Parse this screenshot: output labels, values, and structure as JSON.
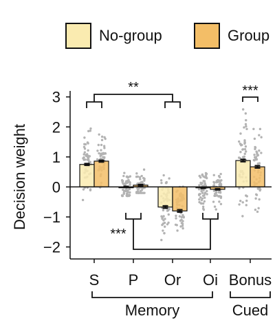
{
  "chart_data": {
    "type": "bar",
    "ylabel": "Decision weight",
    "ylim": [
      -2.4,
      3.2
    ],
    "yticks": [
      3,
      2,
      1,
      0,
      -1,
      -2
    ],
    "ytick_labels": [
      "3",
      "2",
      "1",
      "0",
      "−1",
      "−2"
    ],
    "categories": [
      "S",
      "P",
      "Or",
      "Oi",
      "Bonus"
    ],
    "series": [
      {
        "name": "No-group",
        "color": "#faebb0",
        "values": [
          0.75,
          0.0,
          -0.67,
          -0.03,
          0.88
        ],
        "errors": [
          0.03,
          0.02,
          0.04,
          0.02,
          0.04
        ]
      },
      {
        "name": "Group",
        "color": "#f3be67",
        "values": [
          0.86,
          0.06,
          -0.8,
          -0.08,
          0.67
        ],
        "errors": [
          0.03,
          0.02,
          0.04,
          0.02,
          0.04
        ]
      }
    ],
    "individual_points_color": "#b3b3b3",
    "point_spread": [
      [
        [
          -0.7,
          2.2
        ],
        [
          -0.6,
          2.1
        ]
      ],
      [
        [
          -0.3,
          0.8
        ],
        [
          -0.2,
          1.1
        ]
      ],
      [
        [
          -2.2,
          1.0
        ],
        [
          -2.3,
          0.5
        ]
      ],
      [
        [
          -0.9,
          0.8
        ],
        [
          -0.9,
          0.7
        ]
      ],
      [
        [
          -1.5,
          3.0
        ],
        [
          -1.1,
          2.9
        ]
      ]
    ],
    "groups": [
      {
        "label": "Memory",
        "from": 0,
        "to": 3
      },
      {
        "label": "Cued",
        "from": 4,
        "to": 4
      }
    ],
    "significance": [
      {
        "label": "**",
        "pairs": [
          0,
          2
        ],
        "position": "above"
      },
      {
        "label": "***",
        "pairs": [
          1,
          3
        ],
        "position": "below"
      },
      {
        "label": "***",
        "pairs": [
          4
        ],
        "position": "above"
      }
    ],
    "legend": {
      "placement": "top",
      "entries": [
        "No-group",
        "Group"
      ]
    },
    "grid": false
  }
}
